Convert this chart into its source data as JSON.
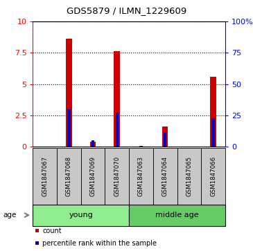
{
  "title": "GDS5879 / ILMN_1229609",
  "samples": [
    "GSM1847067",
    "GSM1847068",
    "GSM1847069",
    "GSM1847070",
    "GSM1847063",
    "GSM1847064",
    "GSM1847065",
    "GSM1847066"
  ],
  "red_values": [
    0.0,
    8.6,
    0.4,
    7.6,
    0.0,
    1.6,
    0.0,
    5.6
  ],
  "blue_values": [
    0.0,
    3.0,
    0.5,
    2.7,
    0.05,
    1.1,
    0.0,
    2.3
  ],
  "groups": [
    {
      "label": "young",
      "start": 0,
      "end": 4,
      "color": "#90ee90"
    },
    {
      "label": "middle age",
      "start": 4,
      "end": 8,
      "color": "#66cc66"
    }
  ],
  "ylim_left": [
    0,
    10
  ],
  "ylim_right": [
    0,
    100
  ],
  "yticks_left": [
    0,
    2.5,
    5.0,
    7.5,
    10
  ],
  "yticks_right": [
    0,
    25,
    50,
    75,
    100
  ],
  "yticklabels_left": [
    "0",
    "2.5",
    "5",
    "7.5",
    "10"
  ],
  "yticklabels_right": [
    "0",
    "25",
    "50",
    "75",
    "100%"
  ],
  "red_bar_width": 0.25,
  "blue_bar_width": 0.12,
  "red_color": "#cc0000",
  "blue_color": "#0000cc",
  "label_box_color": "#c8c8c8",
  "legend_red": "count",
  "legend_blue": "percentile rank within the sample",
  "age_label": "age"
}
